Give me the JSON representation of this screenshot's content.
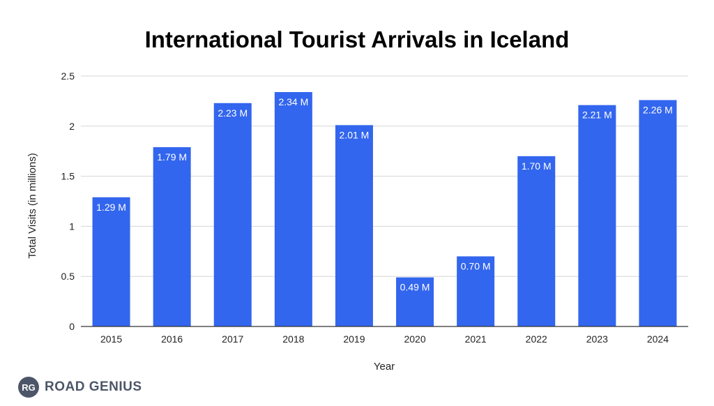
{
  "brand": {
    "badge": "RG",
    "name": "ROAD GENIUS"
  },
  "chart_data": {
    "type": "bar",
    "title": "International Tourist Arrivals in Iceland",
    "xlabel": "Year",
    "ylabel": "Total Visits (in millions)",
    "categories": [
      "2015",
      "2016",
      "2017",
      "2018",
      "2019",
      "2020",
      "2021",
      "2022",
      "2023",
      "2024"
    ],
    "values": [
      1.29,
      1.79,
      2.23,
      2.34,
      2.01,
      0.49,
      0.7,
      1.7,
      2.21,
      2.26
    ],
    "data_labels": [
      "1.29 M",
      "1.79 M",
      "2.23 M",
      "2.34 M",
      "2.01 M",
      "0.49 M",
      "0.70 M",
      "1.70 M",
      "2.21 M",
      "2.26 M"
    ],
    "ylim": [
      0,
      2.5
    ],
    "yticks": [
      "0",
      "0.5",
      "1",
      "1.5",
      "2",
      "2.5"
    ],
    "ytick_values": [
      0,
      0.5,
      1,
      1.5,
      2,
      2.5
    ],
    "grid": true,
    "bar_color": "#3366ee"
  }
}
